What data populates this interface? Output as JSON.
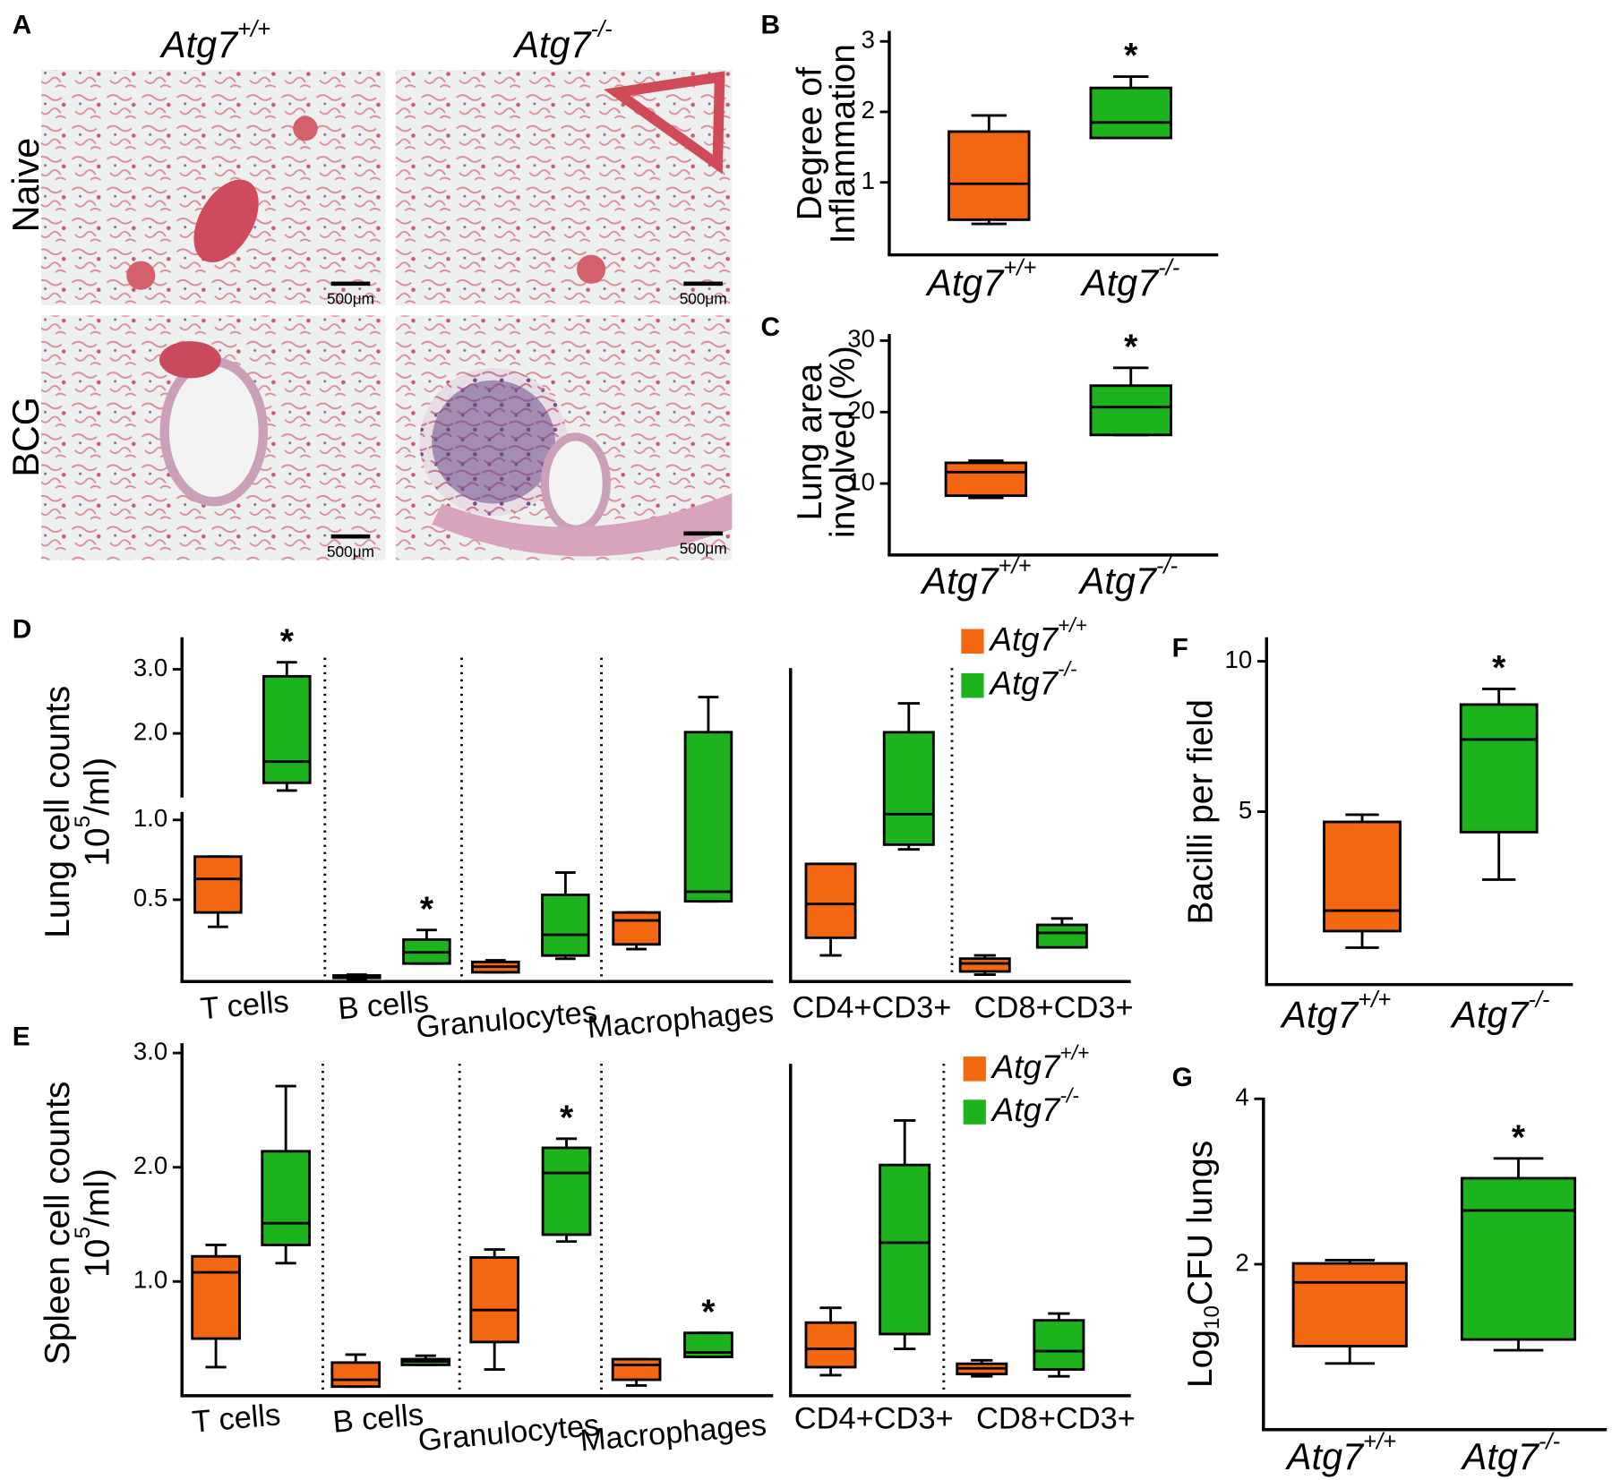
{
  "panel_a": {
    "label": "A",
    "columns": [
      {
        "text": "Atg7",
        "sup": "+/+"
      },
      {
        "text": "Atg7",
        "sup": "-/-"
      }
    ],
    "rows": [
      "Naive",
      "BCG"
    ],
    "scale_bars": [
      "500μm",
      "500μm",
      "500μm",
      "500μm"
    ]
  },
  "chart_data": [
    {
      "type": "box",
      "label": "B",
      "ylabel": [
        "Degree of",
        "Inflammation"
      ],
      "categories": [
        {
          "text": "Atg7",
          "sup": "+/+"
        },
        {
          "text": "Atg7",
          "sup": "-/-"
        }
      ],
      "values": [
        {
          "low": 0.41,
          "q1": 0.47,
          "median": 0.98,
          "q3": 1.72,
          "high": 1.95
        },
        {
          "low": 1.63,
          "q1": 1.63,
          "median": 1.85,
          "q3": 2.34,
          "high": 2.5
        }
      ],
      "colors": [
        "#f46711",
        "#1db31d"
      ],
      "value_labels": [
        null,
        "*"
      ],
      "ylim": [
        0,
        3.15
      ],
      "yticks": [
        1,
        2,
        3
      ]
    },
    {
      "type": "box",
      "label": "C",
      "ylabel": [
        "Lung area",
        "involved (%)"
      ],
      "categories": [
        {
          "text": "Atg7",
          "sup": "+/+"
        },
        {
          "text": "Atg7",
          "sup": "-/-"
        }
      ],
      "values": [
        {
          "low": 8.0,
          "q1": 8.3,
          "median": 11.6,
          "q3": 12.9,
          "high": 13.2
        },
        {
          "low": 16.8,
          "q1": 16.8,
          "median": 20.7,
          "q3": 23.7,
          "high": 26.2
        }
      ],
      "colors": [
        "#f46711",
        "#1db31d"
      ],
      "value_labels": [
        null,
        "*"
      ],
      "ylim": [
        0,
        31.5
      ],
      "yticks": [
        10,
        20,
        30
      ]
    },
    {
      "type": "box",
      "label": "D",
      "ylabel": [
        "Lung cell counts",
        {
          "text": "10",
          "sup": "5",
          "rest": "/ml)"
        }
      ],
      "categories": [
        "T cells",
        "B cells",
        "Granulocytes",
        "Macrophages"
      ],
      "series": [
        {
          "name": {
            "text": "Atg7",
            "sup": "+/+"
          },
          "color": "#f46711",
          "values": [
            {
              "low": 0.33,
              "q1": 0.42,
              "median": 0.63,
              "q3": 0.77,
              "high": 0.77
            },
            {
              "low": 0.0,
              "q1": 0.01,
              "median": 0.02,
              "q3": 0.025,
              "high": 0.03
            },
            {
              "low": 0.045,
              "q1": 0.045,
              "median": 0.08,
              "q3": 0.11,
              "high": 0.12
            },
            {
              "low": 0.19,
              "q1": 0.22,
              "median": 0.37,
              "q3": 0.42,
              "high": 0.42
            }
          ],
          "value_labels": [
            null,
            null,
            null,
            null
          ]
        },
        {
          "name": {
            "text": "Atg7",
            "sup": "-/-"
          },
          "color": "#1db31d",
          "values": [
            {
              "low": 1.11,
              "q1": 1.23,
              "median": 1.56,
              "q3": 2.89,
              "high": 3.11,
              "axis": "y2"
            },
            {
              "low": 0.1,
              "q1": 0.1,
              "median": 0.17,
              "q3": 0.25,
              "high": 0.31
            },
            {
              "low": 0.13,
              "q1": 0.15,
              "median": 0.28,
              "q3": 0.53,
              "high": 0.67
            },
            {
              "low": 0.49,
              "q1": 0.49,
              "median": 0.55,
              "q3": 1.55,
              "high": 1.77
            }
          ],
          "value_labels": [
            "*",
            "*",
            null,
            null
          ]
        }
      ],
      "ylim": [
        0,
        1.05
      ],
      "yticks": [
        0.5,
        {
          "value": 1,
          "label": "1.0"
        }
      ],
      "y2lim": [
        1.0,
        3.5
      ],
      "y2ticks": [
        {
          "value": 2,
          "label": "2.0"
        },
        {
          "value": 3,
          "label": "3.0"
        }
      ]
    },
    {
      "type": "box",
      "categories": [
        "CD4+CD3+",
        "CD8+CD3+"
      ],
      "series": [
        {
          "color": "#f46711",
          "values": [
            {
              "low": 0.15,
              "q1": 0.26,
              "median": 0.47,
              "q3": 0.72,
              "high": 0.72
            },
            {
              "low": 0.03,
              "q1": 0.05,
              "median": 0.1,
              "q3": 0.13,
              "high": 0.15
            }
          ]
        },
        {
          "color": "#1db31d",
          "values": [
            {
              "low": 0.81,
              "q1": 0.84,
              "median": 1.03,
              "q3": 1.54,
              "high": 1.72
            },
            {
              "low": 0.2,
              "q1": 0.2,
              "median": 0.29,
              "q3": 0.34,
              "high": 0.38
            }
          ]
        }
      ],
      "ylim": [
        0,
        1.94
      ]
    },
    {
      "type": "box",
      "label": "E",
      "ylabel": [
        "Spleen cell counts",
        {
          "text": "10",
          "sup": "5",
          "rest": "/ml)"
        }
      ],
      "categories": [
        "T cells",
        "B cells",
        "Granulocytes",
        "Macrophages"
      ],
      "series": [
        {
          "name": {
            "text": "Atg7",
            "sup": "+/+"
          },
          "color": "#f46711",
          "values": [
            {
              "low": 0.25,
              "q1": 0.5,
              "median": 1.08,
              "q3": 1.22,
              "high": 1.32
            },
            {
              "low": 0.08,
              "q1": 0.08,
              "median": 0.14,
              "q3": 0.29,
              "high": 0.36
            },
            {
              "low": 0.23,
              "q1": 0.47,
              "median": 0.75,
              "q3": 1.21,
              "high": 1.28
            },
            {
              "low": 0.09,
              "q1": 0.14,
              "median": 0.27,
              "q3": 0.32,
              "high": 0.32
            }
          ],
          "value_labels": [
            null,
            null,
            null,
            null
          ]
        },
        {
          "name": {
            "text": "Atg7",
            "sup": "-/-"
          },
          "color": "#1db31d",
          "values": [
            {
              "low": 1.16,
              "q1": 1.32,
              "median": 1.51,
              "q3": 2.14,
              "high": 2.71
            },
            {
              "low": 0.27,
              "q1": 0.27,
              "median": 0.3,
              "q3": 0.32,
              "high": 0.35
            },
            {
              "low": 1.35,
              "q1": 1.41,
              "median": 1.95,
              "q3": 2.17,
              "high": 2.25
            },
            {
              "low": 0.34,
              "q1": 0.34,
              "median": 0.38,
              "q3": 0.55,
              "high": 0.55
            }
          ],
          "value_labels": [
            null,
            null,
            "*",
            "*"
          ]
        }
      ],
      "ylim": [
        0,
        3.05
      ],
      "yticks": [
        {
          "value": 1,
          "label": "1.0"
        },
        {
          "value": 2,
          "label": "2.0"
        },
        {
          "value": 3,
          "label": "3.0"
        }
      ]
    },
    {
      "type": "box",
      "categories": [
        "CD4+CD3+",
        "CD8+CD3+"
      ],
      "series": [
        {
          "color": "#f46711",
          "values": [
            {
              "low": 0.18,
              "q1": 0.25,
              "median": 0.41,
              "q3": 0.64,
              "high": 0.77
            },
            {
              "low": 0.17,
              "q1": 0.19,
              "median": 0.24,
              "q3": 0.28,
              "high": 0.31
            }
          ]
        },
        {
          "color": "#1db31d",
          "values": [
            {
              "low": 0.41,
              "q1": 0.54,
              "median": 1.34,
              "q3": 2.02,
              "high": 2.41
            },
            {
              "low": 0.17,
              "q1": 0.23,
              "median": 0.39,
              "q3": 0.66,
              "high": 0.72
            }
          ]
        }
      ],
      "ylim": [
        0,
        3.05
      ]
    },
    {
      "type": "box",
      "label": "F",
      "ylabel": [
        "Bacilli per field"
      ],
      "categories": [
        {
          "text": "Atg7",
          "sup": "+/+"
        },
        {
          "text": "Atg7",
          "sup": "-/-"
        }
      ],
      "values": [
        {
          "low": 0.48,
          "q1": 1.03,
          "median": 1.71,
          "q3": 4.66,
          "high": 4.9
        },
        {
          "low": 2.74,
          "q1": 4.32,
          "median": 7.4,
          "q3": 8.56,
          "high": 9.08
        }
      ],
      "colors": [
        "#f46711",
        "#1db31d"
      ],
      "value_labels": [
        null,
        "*"
      ],
      "ylim": [
        -0.75,
        10.8
      ],
      "yticks": [
        5,
        10
      ]
    },
    {
      "type": "box",
      "label": "G",
      "ylabel": [
        {
          "text": "Log",
          "sub": "10",
          "rest": "CFU lungs"
        }
      ],
      "categories": [
        {
          "text": "Atg7",
          "sup": "+/+"
        },
        {
          "text": "Atg7",
          "sup": "-/-"
        }
      ],
      "values": [
        {
          "low": 0.8,
          "q1": 1.01,
          "median": 1.78,
          "q3": 2.01,
          "high": 2.05
        },
        {
          "low": 0.96,
          "q1": 1.09,
          "median": 2.65,
          "q3": 3.04,
          "high": 3.28
        }
      ],
      "colors": [
        "#f46711",
        "#1db31d"
      ],
      "value_labels": [
        null,
        "*"
      ],
      "ylim": [
        0,
        4.25
      ],
      "yticks": [
        2,
        4
      ]
    }
  ]
}
